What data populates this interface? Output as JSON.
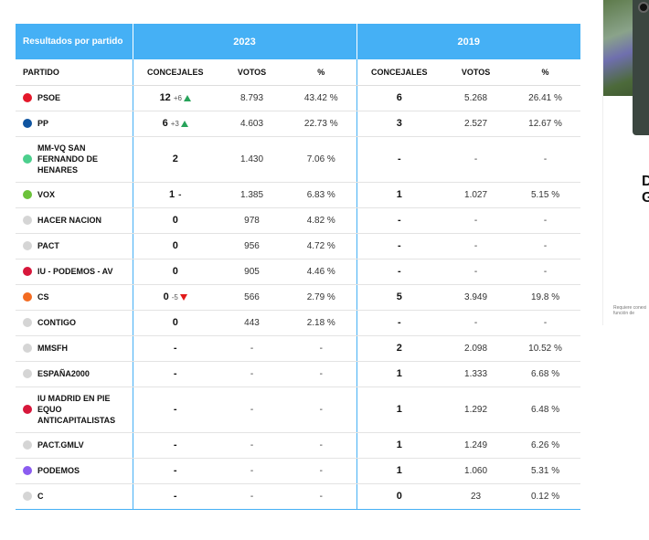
{
  "table": {
    "party_header": "Resultados por partido",
    "years": [
      "2023",
      "2019"
    ],
    "col_party": "PARTIDO",
    "col_seats": "CONCEJALES",
    "col_votes": "VOTOS",
    "col_pct": "%",
    "rows": [
      {
        "name": "PSOE",
        "color": "#e4182a",
        "s23": "12",
        "d23": "+6",
        "t23": "up",
        "v23": "8.793",
        "p23": "43.42 %",
        "s19": "6",
        "v19": "5.268",
        "p19": "26.41 %"
      },
      {
        "name": "PP",
        "color": "#0f54a0",
        "s23": "6",
        "d23": "+3",
        "t23": "up",
        "v23": "4.603",
        "p23": "22.73 %",
        "s19": "3",
        "v19": "2.527",
        "p19": "12.67 %"
      },
      {
        "name": "MM-VQ SAN FERNANDO DE HENARES",
        "color": "#4ccf8d",
        "s23": "2",
        "d23": "",
        "t23": "",
        "v23": "1.430",
        "p23": "7.06 %",
        "s19": "-",
        "v19": "-",
        "p19": "-"
      },
      {
        "name": "VOX",
        "color": "#6bc23a",
        "s23": "1",
        "d23": "",
        "t23": "same",
        "v23": "1.385",
        "p23": "6.83 %",
        "s19": "1",
        "v19": "1.027",
        "p19": "5.15 %"
      },
      {
        "name": "HACER NACION",
        "color": "#d5d5d5",
        "s23": "0",
        "d23": "",
        "t23": "",
        "v23": "978",
        "p23": "4.82 %",
        "s19": "-",
        "v19": "-",
        "p19": "-"
      },
      {
        "name": "PACT",
        "color": "#d5d5d5",
        "s23": "0",
        "d23": "",
        "t23": "",
        "v23": "956",
        "p23": "4.72 %",
        "s19": "-",
        "v19": "-",
        "p19": "-"
      },
      {
        "name": "IU - PODEMOS - AV",
        "color": "#d7173b",
        "s23": "0",
        "d23": "",
        "t23": "",
        "v23": "905",
        "p23": "4.46 %",
        "s19": "-",
        "v19": "-",
        "p19": "-"
      },
      {
        "name": "CS",
        "color": "#f36b21",
        "s23": "0",
        "d23": "-5",
        "t23": "down",
        "v23": "566",
        "p23": "2.79 %",
        "s19": "5",
        "v19": "3.949",
        "p19": "19.8 %"
      },
      {
        "name": "CONTIGO",
        "color": "#d5d5d5",
        "s23": "0",
        "d23": "",
        "t23": "",
        "v23": "443",
        "p23": "2.18 %",
        "s19": "-",
        "v19": "-",
        "p19": "-"
      },
      {
        "name": "MMSFH",
        "color": "#d5d5d5",
        "s23": "-",
        "d23": "",
        "t23": "",
        "v23": "-",
        "p23": "-",
        "s19": "2",
        "v19": "2.098",
        "p19": "10.52 %"
      },
      {
        "name": "ESPAÑA2000",
        "color": "#d5d5d5",
        "s23": "-",
        "d23": "",
        "t23": "",
        "v23": "-",
        "p23": "-",
        "s19": "1",
        "v19": "1.333",
        "p19": "6.68 %"
      },
      {
        "name": "IU MADRID EN PIE EQUO ANTICAPITALISTAS",
        "color": "#d7173b",
        "s23": "-",
        "d23": "",
        "t23": "",
        "v23": "-",
        "p23": "-",
        "s19": "1",
        "v19": "1.292",
        "p19": "6.48 %"
      },
      {
        "name": "PACT.GMLV",
        "color": "#d5d5d5",
        "s23": "-",
        "d23": "",
        "t23": "",
        "v23": "-",
        "p23": "-",
        "s19": "1",
        "v19": "1.249",
        "p19": "6.26 %"
      },
      {
        "name": "PODEMOS",
        "color": "#8b5cf0",
        "s23": "-",
        "d23": "",
        "t23": "",
        "v23": "-",
        "p23": "-",
        "s19": "1",
        "v19": "1.060",
        "p19": "5.31 %"
      },
      {
        "name": "C",
        "color": "#d5d5d5",
        "s23": "-",
        "d23": "",
        "t23": "",
        "v23": "-",
        "p23": "-",
        "s19": "0",
        "v19": "23",
        "p19": "0.12 %"
      }
    ]
  },
  "ad": {
    "letters": [
      "D",
      "G"
    ],
    "fine_print": "Requiere conexi función de"
  }
}
